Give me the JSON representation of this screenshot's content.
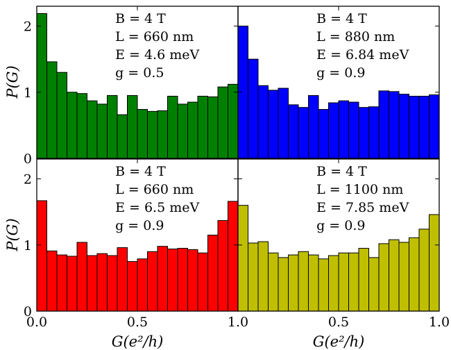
{
  "ylabel": "P(G)",
  "xlabel": "G(e²/h)",
  "x_tick_labels": [
    "0.0",
    "0.5",
    "1.0"
  ],
  "y_tick_labels": [
    "0",
    "1",
    "2"
  ],
  "chart_data": [
    {
      "type": "bar",
      "panel": "top-left",
      "color": "#008000",
      "annotation": [
        "B = 4 T",
        "L = 660 nm",
        "E = 4.6 meV",
        "g = 0.5"
      ],
      "bin_edges": [
        0.0,
        0.05,
        0.1,
        0.15,
        0.2,
        0.25,
        0.3,
        0.35,
        0.4,
        0.45,
        0.5,
        0.55,
        0.6,
        0.65,
        0.7,
        0.75,
        0.8,
        0.85,
        0.9,
        0.95,
        1.0
      ],
      "values": [
        2.19,
        1.46,
        1.3,
        1.0,
        0.98,
        0.87,
        0.82,
        0.95,
        0.66,
        0.95,
        0.74,
        0.71,
        0.72,
        0.94,
        0.82,
        0.85,
        0.94,
        0.93,
        1.08,
        1.12
      ],
      "xlim": [
        0.0,
        1.0
      ],
      "ylim": [
        0,
        2.3
      ]
    },
    {
      "type": "bar",
      "panel": "top-right",
      "color": "#0000ff",
      "annotation": [
        "B = 4 T",
        "L = 880 nm",
        "E = 6.84 meV",
        "g = 0.9"
      ],
      "bin_edges": [
        1.0,
        1.05,
        1.1,
        1.15,
        1.2,
        1.25,
        1.3,
        1.35,
        1.4,
        1.45,
        1.5,
        1.55,
        1.6,
        1.65,
        1.7,
        1.75,
        1.8,
        1.85,
        1.9,
        1.95,
        2.0
      ],
      "values": [
        2.0,
        1.5,
        1.1,
        1.03,
        1.06,
        0.81,
        0.77,
        0.95,
        0.74,
        0.84,
        0.87,
        0.85,
        0.77,
        0.78,
        1.02,
        1.01,
        0.97,
        0.94,
        0.94,
        0.96
      ],
      "xlim": [
        1.0,
        2.0
      ],
      "ylim": [
        0,
        2.3
      ]
    },
    {
      "type": "bar",
      "panel": "bottom-left",
      "color": "#ff0000",
      "annotation": [
        "B = 4 T",
        "L = 660 nm",
        "E = 6.5 meV",
        "g = 0.9"
      ],
      "bin_edges": [
        0.0,
        0.05,
        0.1,
        0.15,
        0.2,
        0.25,
        0.3,
        0.35,
        0.4,
        0.45,
        0.5,
        0.55,
        0.6,
        0.65,
        0.7,
        0.75,
        0.8,
        0.85,
        0.9,
        0.95,
        1.0
      ],
      "values": [
        1.67,
        0.91,
        0.85,
        0.83,
        1.04,
        0.84,
        0.87,
        0.84,
        0.96,
        0.75,
        0.79,
        0.9,
        0.98,
        0.94,
        0.95,
        0.93,
        0.88,
        1.15,
        1.37,
        1.66
      ],
      "xlim": [
        0.0,
        1.0
      ],
      "ylim": [
        0,
        2.3
      ]
    },
    {
      "type": "bar",
      "panel": "bottom-right",
      "color": "#bfbf00",
      "annotation": [
        "B = 4 T",
        "L = 1100 nm",
        "E = 7.85 meV",
        "g = 0.9"
      ],
      "bin_edges": [
        1.0,
        1.05,
        1.1,
        1.15,
        1.2,
        1.25,
        1.3,
        1.35,
        1.4,
        1.45,
        1.5,
        1.55,
        1.6,
        1.65,
        1.7,
        1.75,
        1.8,
        1.85,
        1.9,
        1.95,
        2.0
      ],
      "values": [
        1.6,
        1.03,
        1.05,
        0.88,
        0.81,
        0.85,
        0.9,
        0.85,
        0.79,
        0.84,
        0.88,
        0.88,
        0.95,
        0.81,
        1.02,
        1.08,
        1.04,
        1.11,
        1.24,
        1.46
      ],
      "xlim": [
        1.0,
        2.0
      ],
      "ylim": [
        0,
        2.3
      ]
    }
  ]
}
